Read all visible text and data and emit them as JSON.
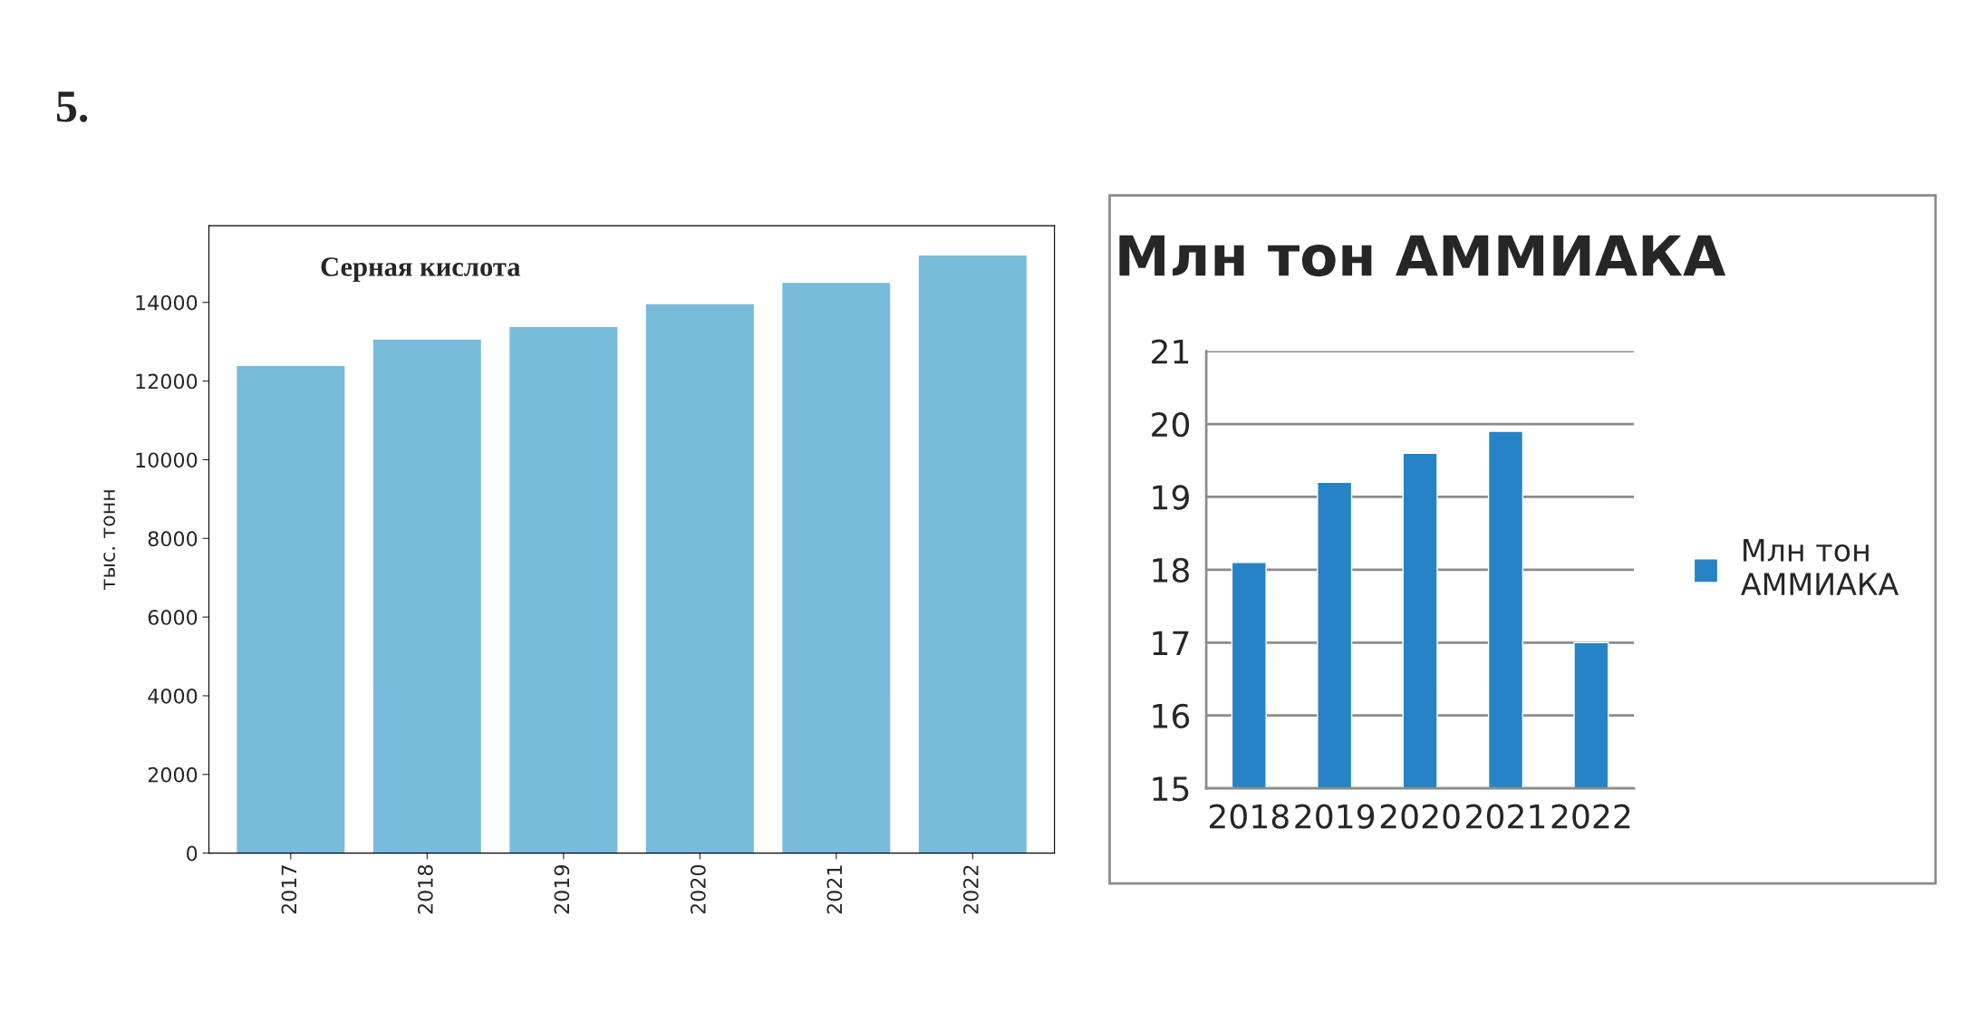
{
  "chart_data": [
    {
      "type": "bar",
      "title": "Серная кислота",
      "ylabel": "тыс. тонн",
      "annotations": [
        "5."
      ],
      "categories": [
        "2017",
        "2018",
        "2019",
        "2020",
        "2021",
        "2022"
      ],
      "values": [
        12400,
        13070,
        13390,
        13970,
        14510,
        15210
      ],
      "color": "#79bbdb",
      "ylim": [
        0,
        15950
      ],
      "yticks": [
        0,
        2000,
        4000,
        6000,
        8000,
        10000,
        12000,
        14000
      ],
      "grid": false,
      "legend": false
    },
    {
      "type": "bar",
      "title": "Млн тон АММИАКА",
      "categories": [
        "2018",
        "2019",
        "2020",
        "2021",
        "2022"
      ],
      "series": [
        {
          "name": "Млн тон АММИАКА",
          "color": "#2683c6",
          "values": [
            18.1,
            19.2,
            19.6,
            19.9,
            17.0
          ]
        }
      ],
      "ylim": [
        15,
        21
      ],
      "yticks": [
        15,
        16,
        17,
        18,
        19,
        20,
        21
      ],
      "grid": "y",
      "legend": "right"
    }
  ]
}
